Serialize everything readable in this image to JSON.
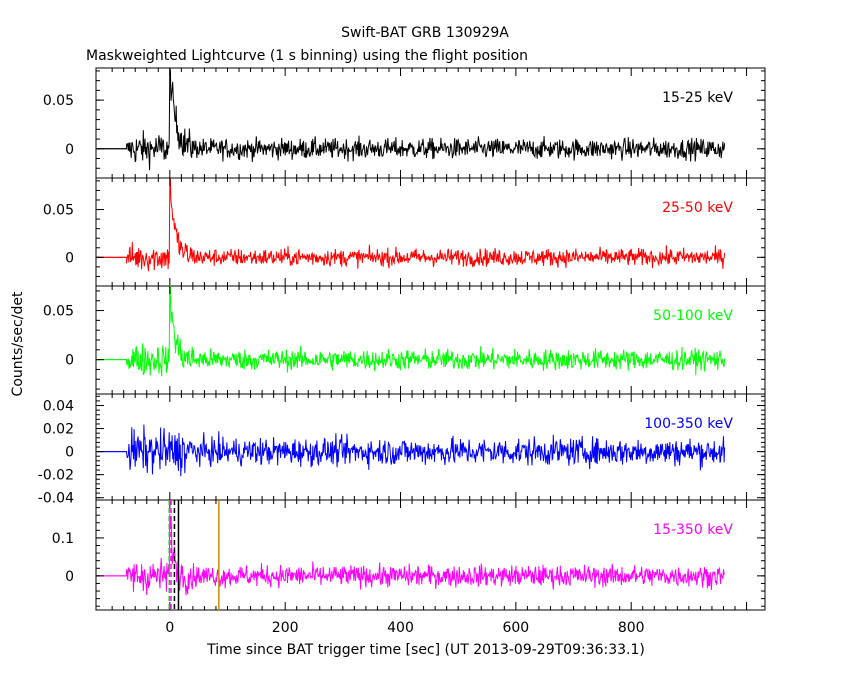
{
  "chart_data": {
    "type": "line",
    "title": "Swift-BAT GRB 130929A",
    "subtitle": "Maskweighted Lightcurve (1 s binning) using the flight position",
    "xlabel": "Time since BAT trigger time [sec] (UT 2013-09-29T09:36:33.1)",
    "ylabel": "Counts/sec/det",
    "xlim": [
      -128,
      1032
    ],
    "x_ticks": [
      0,
      200,
      400,
      600,
      800
    ],
    "grid": false,
    "panels": [
      {
        "band": "15-25 keV",
        "color": "#000000",
        "ylim": [
          -0.03,
          0.083
        ],
        "y_ticks": [
          0,
          0.05
        ],
        "y_tick_labels": [
          "0",
          "0.05"
        ],
        "noise_sigma": 0.0075,
        "peak": {
          "x": 0,
          "y": 0.082,
          "decay_s": 10
        }
      },
      {
        "band": "25-50 keV",
        "color": "#ff0000",
        "ylim": [
          -0.03,
          0.083
        ],
        "y_ticks": [
          0,
          0.05
        ],
        "y_tick_labels": [
          "0",
          "0.05"
        ],
        "noise_sigma": 0.0065,
        "peak": {
          "x": 0,
          "y": 0.08,
          "decay_s": 9
        }
      },
      {
        "band": "50-100 keV",
        "color": "#00ff00",
        "ylim": [
          -0.035,
          0.075
        ],
        "y_ticks": [
          0,
          0.05
        ],
        "y_tick_labels": [
          "0",
          "0.05"
        ],
        "noise_sigma": 0.0075,
        "peak": {
          "x": 0,
          "y": 0.072,
          "decay_s": 8
        }
      },
      {
        "band": "100-350 keV",
        "color": "#0000ff",
        "ylim": [
          -0.042,
          0.05
        ],
        "y_ticks": [
          -0.04,
          -0.02,
          0,
          0.02,
          0.04
        ],
        "y_tick_labels": [
          "-0.04",
          "-0.02",
          "0",
          "0.02",
          "0.04"
        ],
        "noise_sigma": 0.0085,
        "peak": null
      },
      {
        "band": "15-350 keV",
        "color": "#ff00ff",
        "ylim": [
          -0.09,
          0.2
        ],
        "y_ticks": [
          0,
          0.1
        ],
        "y_tick_labels": [
          "0",
          "0.1"
        ],
        "noise_sigma": 0.02,
        "peak": {
          "x": 0,
          "y": 0.16,
          "decay_s": 6
        }
      }
    ],
    "time_series": {
      "pre_trigger_start": -128,
      "data_start": -75,
      "data_end": 962,
      "bin_s": 1
    },
    "markers": [
      {
        "x": -1,
        "color": "#00dd00",
        "style": "dashed"
      },
      {
        "x": 2,
        "color": "#ff00ff",
        "style": "dashed"
      },
      {
        "x": 8,
        "color": "#000000",
        "style": "dashed"
      },
      {
        "x": 15,
        "color": "#000000",
        "style": "solid"
      },
      {
        "x": 85,
        "color": "#cc8800",
        "style": "solid"
      }
    ]
  }
}
